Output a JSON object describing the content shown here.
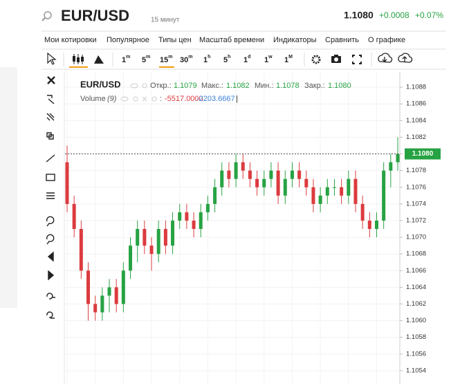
{
  "header": {
    "symbol": "EUR/USD",
    "interval": "15 минут",
    "price": "1.1080",
    "change": "+0.0008",
    "change_pct": "+0.07%"
  },
  "menu": [
    "Мои котировки",
    "Популярное",
    "Типы цен",
    "Масштаб времени",
    "Индикаторы",
    "Сравнить",
    "О графике"
  ],
  "timeframes": [
    {
      "n": "1",
      "u": "m"
    },
    {
      "n": "5",
      "u": "m"
    },
    {
      "n": "15",
      "u": "m"
    },
    {
      "n": "30",
      "u": "m"
    },
    {
      "n": "1",
      "u": "h"
    },
    {
      "n": "5",
      "u": "h"
    },
    {
      "n": "1",
      "u": "d"
    },
    {
      "n": "1",
      "u": "w"
    },
    {
      "n": "1",
      "u": "M"
    }
  ],
  "legend": {
    "symbol": "EUR/USD",
    "open_label": "Откр.:",
    "open": "1.1079",
    "high_label": "Макс.:",
    "high": "1.1082",
    "low_label": "Мин.:",
    "low": "1.1078",
    "close_label": "Закр.:",
    "close": "1.1080",
    "volume_label": "Volume",
    "volume_period": "(9)",
    "volume_sep": ":",
    "volume_value_1": "-5517.0000",
    "volume_value_2": "-2203.6667",
    "cursor": "|"
  },
  "chart_data": {
    "type": "candlestick",
    "open": [
      1.1079,
      1.1074,
      1.1071,
      1.1066,
      1.1062,
      1.1061,
      1.1063,
      1.1064,
      1.1062,
      1.1066,
      1.1069,
      1.1071,
      1.1069,
      1.1068,
      1.1071,
      1.1069,
      1.1072,
      1.1073,
      1.1072,
      1.1071,
      1.1073,
      1.1074,
      1.1076,
      1.1078,
      1.1077,
      1.1079,
      1.1078,
      1.1077,
      1.1076,
      1.1077,
      1.1078,
      1.1075,
      1.1077,
      1.1078,
      1.1077,
      1.1076,
      1.1074,
      1.1075,
      1.1076,
      1.1076,
      1.1075,
      1.1077,
      1.1074,
      1.1072,
      1.1071,
      1.1072,
      1.1078,
      1.1079
    ],
    "high": [
      1.1081,
      1.1075,
      1.1072,
      1.1067,
      1.1063,
      1.1064,
      1.1065,
      1.1065,
      1.1067,
      1.107,
      1.1072,
      1.1072,
      1.107,
      1.1072,
      1.1072,
      1.1073,
      1.1074,
      1.1074,
      1.1073,
      1.1074,
      1.1075,
      1.1077,
      1.1079,
      1.1079,
      1.108,
      1.108,
      1.1079,
      1.1078,
      1.1078,
      1.1079,
      1.1079,
      1.1078,
      1.1079,
      1.1079,
      1.1078,
      1.1077,
      1.1076,
      1.1077,
      1.1077,
      1.1077,
      1.1078,
      1.1078,
      1.1075,
      1.1073,
      1.1073,
      1.1079,
      1.108,
      1.1082
    ],
    "low": [
      1.1073,
      1.107,
      1.1065,
      1.106,
      1.106,
      1.106,
      1.1061,
      1.1061,
      1.1061,
      1.1065,
      1.1067,
      1.1068,
      1.1066,
      1.1067,
      1.1068,
      1.1068,
      1.1071,
      1.1071,
      1.107,
      1.107,
      1.1072,
      1.1073,
      1.1075,
      1.1076,
      1.1076,
      1.1077,
      1.1076,
      1.1075,
      1.1075,
      1.1076,
      1.1074,
      1.1074,
      1.1076,
      1.1076,
      1.1075,
      1.1073,
      1.1073,
      1.1074,
      1.1075,
      1.1074,
      1.1074,
      1.1073,
      1.1071,
      1.107,
      1.107,
      1.1071,
      1.1076,
      1.1078
    ],
    "close": [
      1.1074,
      1.1071,
      1.1066,
      1.1062,
      1.1061,
      1.1063,
      1.1064,
      1.1062,
      1.1066,
      1.1069,
      1.1071,
      1.1069,
      1.1068,
      1.1071,
      1.1069,
      1.1072,
      1.1073,
      1.1072,
      1.1071,
      1.1073,
      1.1074,
      1.1076,
      1.1078,
      1.1077,
      1.1079,
      1.1078,
      1.1077,
      1.1076,
      1.1077,
      1.1078,
      1.1075,
      1.1077,
      1.1078,
      1.1077,
      1.1076,
      1.1074,
      1.1075,
      1.1076,
      1.1076,
      1.1075,
      1.1077,
      1.1074,
      1.1072,
      1.1071,
      1.1072,
      1.1078,
      1.1079,
      1.108
    ],
    "up_color": "#27a243",
    "down_color": "#dc3b3f",
    "ylim": [
      1.1053,
      1.109
    ],
    "yticks": [
      1.1054,
      1.1056,
      1.1058,
      {
        "value": 1.106,
        "label": "1.1060"
      },
      1.1062,
      1.1064,
      1.1066,
      1.1068,
      {
        "value": 1.107,
        "label": "1.1070"
      },
      1.1072,
      1.1074,
      1.1076,
      1.1078,
      {
        "value": 1.108,
        "label": "1.1080"
      },
      1.1082,
      1.1084,
      1.1086,
      1.1088
    ],
    "current_price": {
      "value": 1.108,
      "label": "1.1080"
    },
    "grid": true
  }
}
